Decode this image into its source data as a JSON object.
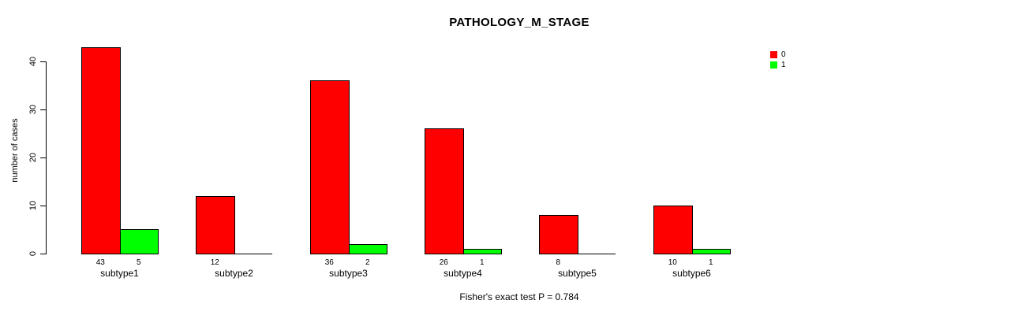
{
  "chart_data": {
    "type": "bar",
    "title": "PATHOLOGY_M_STAGE",
    "ylabel": "number of cases",
    "xlabel": "",
    "footer": "Fisher's exact test P = 0.784",
    "categories": [
      "subtype1",
      "subtype2",
      "subtype3",
      "subtype4",
      "subtype5",
      "subtype6"
    ],
    "series": [
      {
        "name": "0",
        "color": "#ff0000",
        "values": [
          43,
          12,
          36,
          26,
          8,
          10
        ]
      },
      {
        "name": "1",
        "color": "#00ff00",
        "values": [
          5,
          0,
          2,
          1,
          0,
          1
        ]
      }
    ],
    "value_labels": {
      "shown": true,
      "note": "zero values have no bar and no label"
    },
    "yticks": [
      0,
      10,
      20,
      30,
      40
    ],
    "ylim": [
      0,
      43
    ],
    "grid": false,
    "legend_position": "top-right",
    "axis_color": "#000000",
    "bar_border_color": "#000000",
    "background_color": "#ffffff"
  }
}
